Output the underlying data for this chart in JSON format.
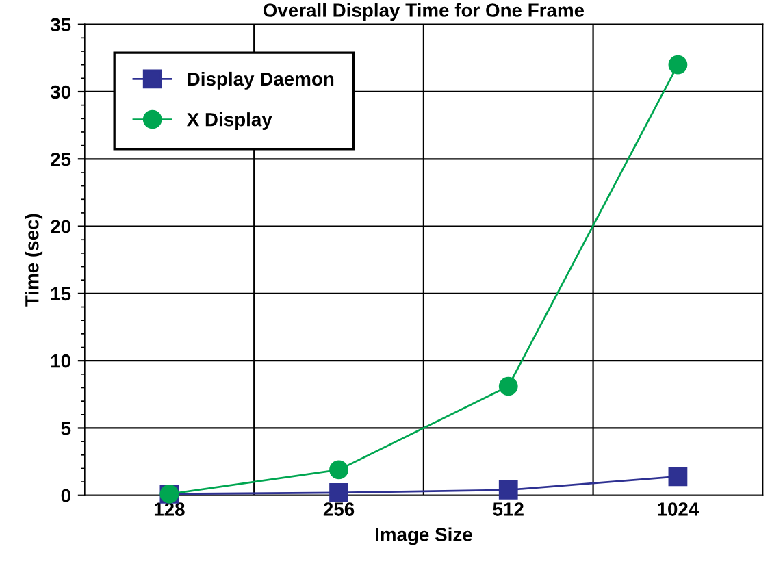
{
  "chart_data": {
    "type": "line",
    "title": "Overall Display Time for One Frame",
    "xlabel": "Image Size",
    "ylabel": "Time (sec)",
    "categories": [
      "128",
      "256",
      "512",
      "1024"
    ],
    "series": [
      {
        "name": "Display Daemon",
        "color": "#2e3192",
        "marker": "square",
        "values": [
          0.1,
          0.2,
          0.4,
          1.4
        ]
      },
      {
        "name": "X Display",
        "color": "#00a651",
        "marker": "circle",
        "values": [
          0.1,
          1.9,
          8.1,
          32.0
        ]
      }
    ],
    "ylim": [
      0,
      35
    ],
    "yticks": [
      0,
      5,
      10,
      15,
      20,
      25,
      30,
      35
    ],
    "grid": true,
    "legend": "top left",
    "line_style": "solid"
  }
}
